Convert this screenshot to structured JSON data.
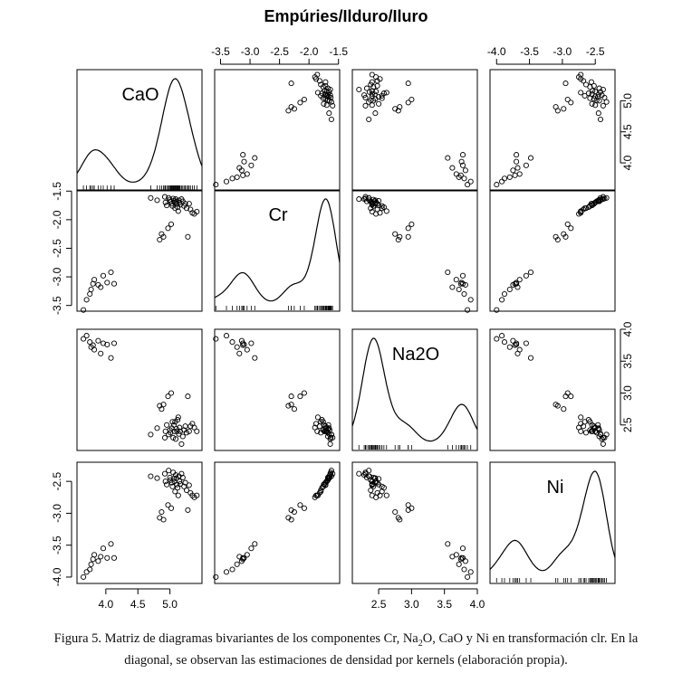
{
  "chart_data": {
    "type": "scatter-matrix",
    "title": "Empúries/Ilduro/Iluro",
    "variables": [
      "CaO",
      "Cr",
      "Na2O",
      "Ni"
    ],
    "axes": {
      "CaO": {
        "range": [
          3.55,
          5.5
        ],
        "ticks": [
          4.0,
          4.5,
          5.0
        ],
        "tick_labels": [
          "4.0",
          "4.5",
          "5.0"
        ]
      },
      "Cr": {
        "range": [
          -3.6,
          -1.48
        ],
        "ticks": [
          -3.5,
          -3.0,
          -2.5,
          -2.0,
          -1.5
        ],
        "tick_labels": [
          "-3.5",
          "-3.0",
          "-2.5",
          "-2.0",
          "-1.5"
        ]
      },
      "Na2O": {
        "range": [
          2.1,
          4.0
        ],
        "ticks": [
          2.5,
          3.0,
          3.5,
          4.0
        ],
        "tick_labels": [
          "2.5",
          "3.0",
          "3.5",
          "4.0"
        ]
      },
      "Ni": {
        "range": [
          -4.1,
          -2.2
        ],
        "ticks": [
          -4.0,
          -3.5,
          -3.0,
          -2.5
        ],
        "tick_labels": [
          "-4.0",
          "-3.5",
          "-3.0",
          "-2.5"
        ]
      }
    },
    "points": [
      [
        3.65,
        -3.58,
        3.85,
        -4.0
      ],
      [
        3.7,
        -3.4,
        3.9,
        -3.92
      ],
      [
        3.75,
        -3.3,
        3.8,
        -3.88
      ],
      [
        3.77,
        -3.22,
        3.72,
        -3.8
      ],
      [
        3.8,
        -3.12,
        3.75,
        -3.72
      ],
      [
        3.82,
        -3.05,
        3.68,
        -3.65
      ],
      [
        3.88,
        -3.14,
        3.82,
        -3.75
      ],
      [
        3.92,
        -3.18,
        3.62,
        -3.68
      ],
      [
        3.96,
        -2.98,
        3.78,
        -3.55
      ],
      [
        4.02,
        -3.1,
        3.76,
        -3.7
      ],
      [
        4.08,
        -2.92,
        3.55,
        -3.48
      ],
      [
        4.13,
        -3.12,
        3.78,
        -3.7
      ],
      [
        4.7,
        -1.62,
        2.35,
        -2.42
      ],
      [
        4.8,
        -1.66,
        2.45,
        -2.45
      ],
      [
        4.84,
        -2.35,
        2.8,
        -3.07
      ],
      [
        4.87,
        -2.25,
        2.75,
        -2.98
      ],
      [
        4.9,
        -2.3,
        2.82,
        -3.1
      ],
      [
        4.92,
        -1.6,
        2.3,
        -2.38
      ],
      [
        4.93,
        -1.7,
        2.4,
        -2.5
      ],
      [
        4.95,
        -1.75,
        2.5,
        -2.55
      ],
      [
        4.97,
        -2.15,
        2.95,
        -2.87
      ],
      [
        4.98,
        -1.62,
        2.35,
        -2.33
      ],
      [
        5.0,
        -1.65,
        2.42,
        -2.44
      ],
      [
        5.01,
        -1.68,
        2.38,
        -2.48
      ],
      [
        5.02,
        -2.08,
        3.0,
        -2.92
      ],
      [
        5.03,
        -1.72,
        2.45,
        -2.52
      ],
      [
        5.04,
        -1.76,
        2.55,
        -2.58
      ],
      [
        5.05,
        -1.63,
        2.3,
        -2.36
      ],
      [
        5.06,
        -1.67,
        2.5,
        -2.46
      ],
      [
        5.07,
        -1.7,
        2.4,
        -2.5
      ],
      [
        5.08,
        -1.8,
        2.55,
        -2.66
      ],
      [
        5.09,
        -1.64,
        2.28,
        -2.4
      ],
      [
        5.1,
        -1.68,
        2.44,
        -2.45
      ],
      [
        5.11,
        -1.72,
        2.4,
        -2.55
      ],
      [
        5.12,
        -1.78,
        2.58,
        -2.6
      ],
      [
        5.13,
        -1.85,
        2.62,
        -2.72
      ],
      [
        5.14,
        -1.66,
        2.36,
        -2.42
      ],
      [
        5.15,
        -1.7,
        2.46,
        -2.5
      ],
      [
        5.16,
        -1.74,
        2.4,
        -2.54
      ],
      [
        5.18,
        -1.64,
        2.2,
        -2.38
      ],
      [
        5.2,
        -1.68,
        2.32,
        -2.44
      ],
      [
        5.22,
        -1.76,
        2.42,
        -2.58
      ],
      [
        5.24,
        -1.72,
        2.48,
        -2.52
      ],
      [
        5.26,
        -1.8,
        2.38,
        -2.64
      ],
      [
        5.28,
        -2.3,
        2.95,
        -2.95
      ],
      [
        5.3,
        -1.72,
        2.4,
        -2.56
      ],
      [
        5.32,
        -1.82,
        2.48,
        -2.68
      ],
      [
        5.35,
        -1.88,
        2.52,
        -2.72
      ],
      [
        5.38,
        -1.9,
        2.46,
        -2.75
      ],
      [
        5.42,
        -1.86,
        2.4,
        -2.72
      ]
    ]
  },
  "caption": {
    "prefix": "Figura 5. Matriz de diagramas bivariantes de los componentes Cr, Na",
    "sub": "2",
    "suffix": "O, CaO y Ni en transformación clr. En la",
    "line2": "diagonal, se observan las estimaciones de densidad por kernels (elaboración propia)."
  }
}
